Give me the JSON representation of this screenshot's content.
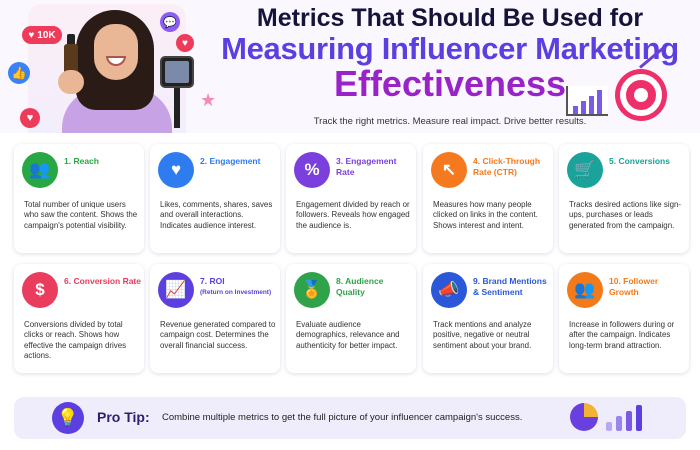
{
  "header": {
    "title_line1": "Metrics That Should Be Used for",
    "title_line2": "Measuring Influencer Marketing",
    "title_line3": "Effectiveness",
    "subtitle": "Track the right metrics. Measure real impact. Drive better results.",
    "like_badge": "10K"
  },
  "colors": {
    "title_dark": "#16133a",
    "title_purple": "#5b3fe0",
    "title_magenta": "#9a23c8",
    "reach": "#27a845",
    "engagement": "#2f7cf0",
    "engagement_rate": "#7a3fdc",
    "ctr": "#f57a1f",
    "conversions": "#1aa39a",
    "conversion_rate": "#ea3c5c",
    "roi": "#5b3fe0",
    "audience_quality": "#2ea34a",
    "brand_mentions": "#2b58d8",
    "follower_growth": "#f27a1b"
  },
  "metrics": [
    {
      "title": "1. Reach",
      "subtitle": "",
      "icon": "users-icon",
      "glyph": "👥",
      "desc": "Total number of unique users who saw the content. Shows the campaign's potential visibility."
    },
    {
      "title": "2. Engagement",
      "subtitle": "",
      "icon": "heart-icon",
      "glyph": "♥",
      "desc": "Likes, comments, shares, saves and overall interactions. Indicates audience interest."
    },
    {
      "title": "3. Engagement Rate",
      "subtitle": "",
      "icon": "percent-icon",
      "glyph": "%",
      "desc": "Engagement divided by reach or followers. Reveals how engaged the audience is."
    },
    {
      "title": "4. Click-Through Rate (CTR)",
      "subtitle": "",
      "icon": "cursor-click-icon",
      "glyph": "↖",
      "desc": "Measures how many people clicked on links in the content. Shows interest and intent."
    },
    {
      "title": "5. Conversions",
      "subtitle": "",
      "icon": "shopping-cart-icon",
      "glyph": "🛒",
      "desc": "Tracks desired actions like sign-ups, purchases or leads generated from the campaign."
    },
    {
      "title": "6. Conversion Rate",
      "subtitle": "",
      "icon": "dollar-icon",
      "glyph": "$",
      "desc": "Conversions divided by total clicks or reach. Shows how effective the campaign drives actions."
    },
    {
      "title": "7. ROI",
      "subtitle": "(Return on Investment)",
      "icon": "growth-chart-icon",
      "glyph": "📈",
      "desc": "Revenue generated compared to campaign cost. Determines the overall financial success."
    },
    {
      "title": "8. Audience Quality",
      "subtitle": "",
      "icon": "award-badge-icon",
      "glyph": "🏅",
      "desc": "Evaluate audience demographics, relevance and authenticity for better impact."
    },
    {
      "title": "9. Brand Mentions & Sentiment",
      "subtitle": "",
      "icon": "megaphone-icon",
      "glyph": "📣",
      "desc": "Track mentions and analyze positive, negative or neutral sentiment about your brand."
    },
    {
      "title": "10. Follower Growth",
      "subtitle": "",
      "icon": "group-growth-icon",
      "glyph": "👥",
      "desc": "Increase in followers during or after the campaign. Indicates long-term brand attraction."
    }
  ],
  "tip": {
    "label": "Pro Tip:",
    "text": "Combine multiple metrics to get the full picture of your influencer campaign's success."
  }
}
